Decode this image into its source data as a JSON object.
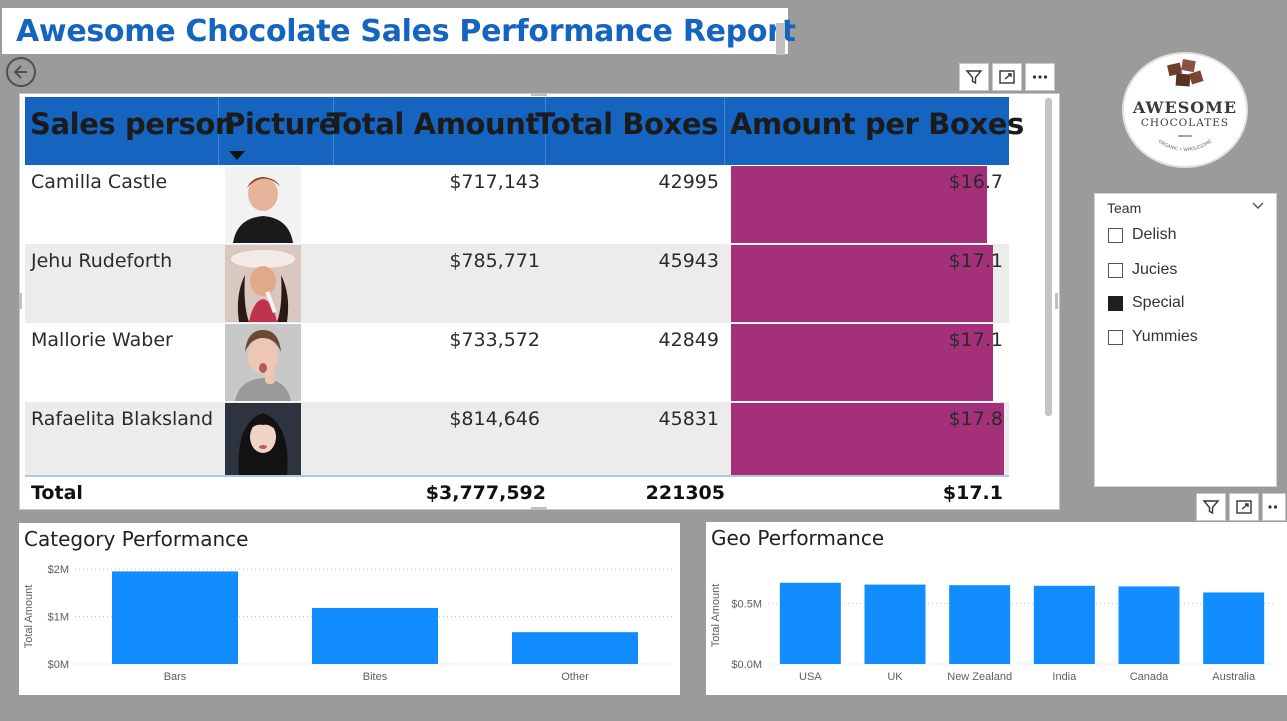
{
  "report": {
    "title": "Awesome Chocolate Sales Performance Report"
  },
  "table": {
    "columns": [
      "Sales person",
      "Picture",
      "Total Amount",
      "Total Boxes",
      "Amount per Boxes"
    ],
    "rows": [
      {
        "name": "Camilla Castle",
        "amount": "$717,143",
        "boxes": "42995",
        "per_box": "$16.7",
        "per_box_value": 16.7
      },
      {
        "name": "Jehu Rudeforth",
        "amount": "$785,771",
        "boxes": "45943",
        "per_box": "$17.1",
        "per_box_value": 17.1
      },
      {
        "name": "Mallorie Waber",
        "amount": "$733,572",
        "boxes": "42849",
        "per_box": "$17.1",
        "per_box_value": 17.1
      },
      {
        "name": "Rafaelita Blaksland",
        "amount": "$814,646",
        "boxes": "45831",
        "per_box": "$17.8",
        "per_box_value": 17.8
      }
    ],
    "total": {
      "label": "Total",
      "amount": "$3,777,592",
      "boxes": "221305",
      "per_box": "$17.1"
    }
  },
  "slicer": {
    "title": "Team",
    "items": [
      {
        "label": "Delish",
        "checked": false
      },
      {
        "label": "Jucies",
        "checked": false
      },
      {
        "label": "Special",
        "checked": true
      },
      {
        "label": "Yummies",
        "checked": false
      }
    ]
  },
  "logo": {
    "line1": "AWESOME",
    "line2": "CHOCOLATES",
    "line3": "ORGANIC • WHOLESOME"
  },
  "icons": {
    "back": "back-arrow-icon",
    "filter": "filter-icon",
    "focus": "focus-mode-icon",
    "more": "more-options-icon",
    "chevron": "chevron-down-icon"
  },
  "colors": {
    "title": "#1565c0",
    "header": "#1565c0",
    "data_bar": "#a5307a",
    "chart_bar": "#118dff"
  },
  "chart_data": [
    {
      "type": "bar",
      "title": "Category Performance",
      "ylabel": "Total Amount",
      "categories": [
        "Bars",
        "Bites",
        "Other"
      ],
      "values": [
        1950000,
        1180000,
        670000
      ],
      "yticks": [
        "$0M",
        "$1M",
        "$2M"
      ],
      "ylim": [
        0,
        2000000
      ],
      "grid": true
    },
    {
      "type": "bar",
      "title": "Geo Performance",
      "ylabel": "Total Amount",
      "categories": [
        "USA",
        "UK",
        "New Zealand",
        "India",
        "Canada",
        "Australia"
      ],
      "values": [
        670000,
        655000,
        650000,
        645000,
        640000,
        590000
      ],
      "yticks": [
        "$0.0M",
        "$0.5M"
      ],
      "ylim": [
        0,
        800000
      ],
      "grid": true
    }
  ]
}
